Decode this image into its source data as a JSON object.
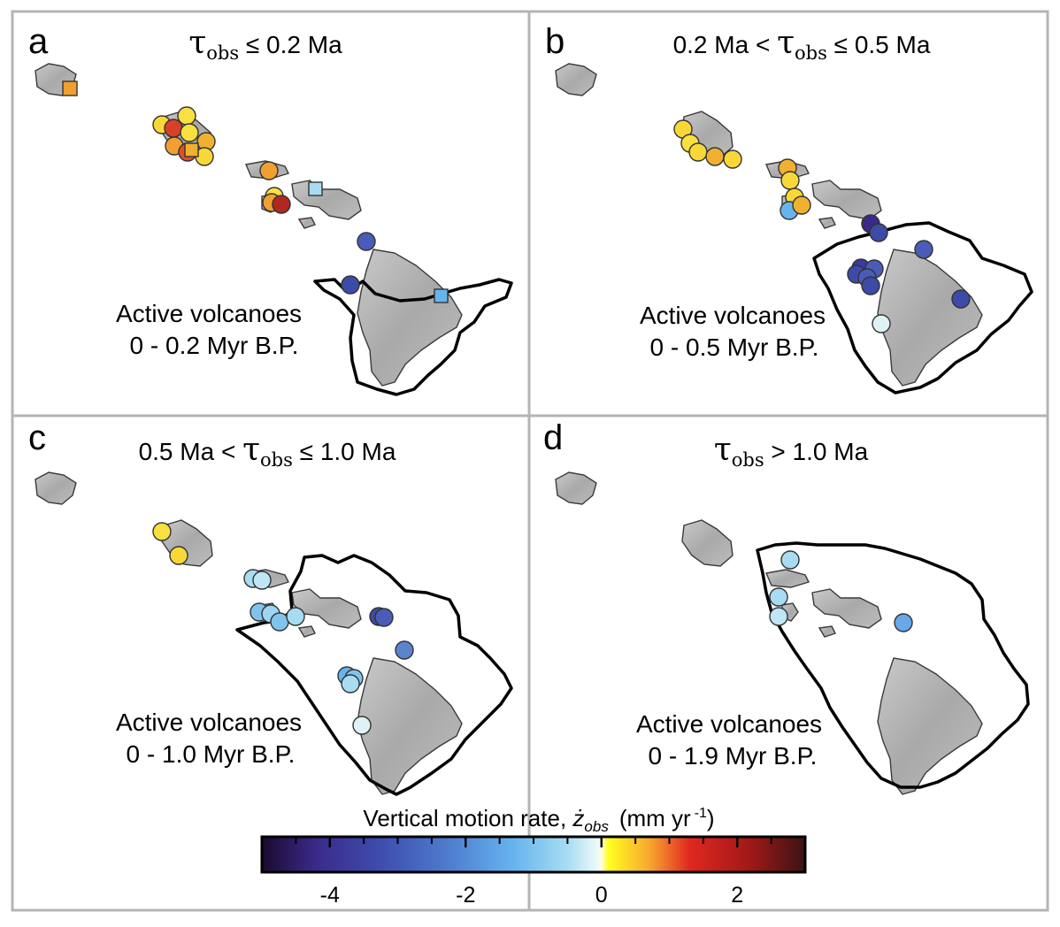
{
  "panels": [
    {
      "letter": "a",
      "title": {
        "pre": "",
        "tau": "τ",
        "sub": "obs",
        "post": " ≤ 0.2 Ma"
      },
      "active_line1": "Active volcanoes",
      "active_line2": "0 - 0.2 Myr B.P."
    },
    {
      "letter": "b",
      "title": {
        "pre": "0.2 Ma < ",
        "tau": "τ",
        "sub": "obs",
        "post": " ≤ 0.5 Ma"
      },
      "active_line1": "Active volcanoes",
      "active_line2": "0 - 0.5 Myr B.P."
    },
    {
      "letter": "c",
      "title": {
        "pre": "0.5 Ma < ",
        "tau": "τ",
        "sub": "obs",
        "post": " ≤ 1.0 Ma"
      },
      "active_line1": "Active volcanoes",
      "active_line2": "0 - 1.0 Myr B.P."
    },
    {
      "letter": "d",
      "title": {
        "pre": "",
        "tau": "τ",
        "sub": "obs",
        "post": " > 1.0 Ma"
      },
      "active_line1": "Active volcanoes",
      "active_line2": "0 - 1.9 Myr B.P."
    }
  ],
  "colorbar": {
    "title_pre": "Vertical motion rate, ",
    "symbol": "ż",
    "symbol_sub": "obs",
    "units_pre": "(mm yr",
    "units_sup": "-1",
    "units_post": ")",
    "min": -5,
    "max": 3,
    "ticks": [
      {
        "value": -4,
        "label": "-4"
      },
      {
        "value": -2,
        "label": "-2"
      },
      {
        "value": 0,
        "label": "0"
      },
      {
        "value": 2,
        "label": "2"
      }
    ],
    "minor_ticks": [
      -4.5,
      -3.5,
      -3,
      -2.5,
      -1.5,
      -1,
      -0.5,
      0.5,
      1,
      1.5,
      2.5
    ],
    "stops": [
      {
        "value": -5,
        "color": "#1a0a2e"
      },
      {
        "value": -4.2,
        "color": "#3b2a8a"
      },
      {
        "value": -3.2,
        "color": "#3e4fb0"
      },
      {
        "value": -2.2,
        "color": "#4f7fd0"
      },
      {
        "value": -1.3,
        "color": "#66b4ee"
      },
      {
        "value": -0.5,
        "color": "#a8dcf2"
      },
      {
        "value": -0.05,
        "color": "#eefaf8"
      },
      {
        "value": 0,
        "color": "#fffde0"
      },
      {
        "value": 0.1,
        "color": "#ffff20"
      },
      {
        "value": 0.7,
        "color": "#f8a830"
      },
      {
        "value": 1.3,
        "color": "#e02820"
      },
      {
        "value": 2.2,
        "color": "#a01818"
      },
      {
        "value": 3,
        "color": "#3a1414"
      }
    ]
  }
}
